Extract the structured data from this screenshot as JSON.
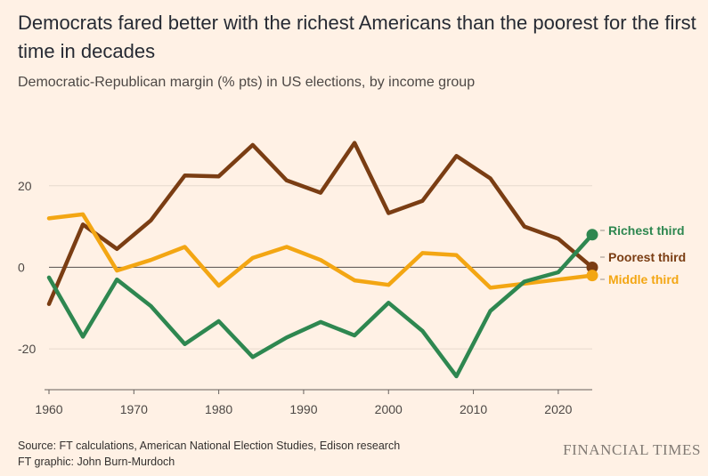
{
  "title": "Democrats fared better with the richest Americans than the poorest for the first time in decades",
  "subtitle": "Democratic-Republican margin (% pts) in US elections, by income group",
  "source_line1": "Source: FT calculations, American National Election Studies, Edison research",
  "source_line2": "FT graphic: John Burn-Murdoch",
  "brand": "FINANCIAL TIMES",
  "chart_data": {
    "type": "line",
    "x": [
      1960,
      1964,
      1968,
      1972,
      1976,
      1980,
      1984,
      1988,
      1992,
      1996,
      2000,
      2004,
      2008,
      2012,
      2016,
      2020,
      2024
    ],
    "xlim": [
      1960,
      2024
    ],
    "ylim": [
      -30,
      35
    ],
    "xticks": [
      1960,
      1970,
      1980,
      1990,
      2000,
      2010,
      2020
    ],
    "yticks": [
      -20,
      0,
      20
    ],
    "grid": "horizontal",
    "legend": "direct labels at line ends",
    "series": [
      {
        "name": "Poorest third",
        "color": "#7a3d13",
        "values": [
          -9,
          10.5,
          4.5,
          11.5,
          22.5,
          22.3,
          30,
          21.3,
          18.3,
          30.5,
          13.3,
          16.3,
          27.3,
          21.8,
          10,
          7,
          0
        ]
      },
      {
        "name": "Middle third",
        "color": "#f3a613",
        "values": [
          12,
          13,
          -0.8,
          1.8,
          5,
          -4.5,
          2.3,
          5,
          1.8,
          -3.2,
          -4.3,
          3.5,
          3,
          -5,
          -4,
          -3,
          -2
        ]
      },
      {
        "name": "Richest third",
        "color": "#2e8750",
        "values": [
          -2.5,
          -17,
          -3,
          -9.5,
          -18.8,
          -13.2,
          -22,
          -17.2,
          -13.4,
          -16.7,
          -8.7,
          -15.6,
          -26.7,
          -10.7,
          -3.5,
          -1.2,
          8
        ]
      }
    ]
  }
}
